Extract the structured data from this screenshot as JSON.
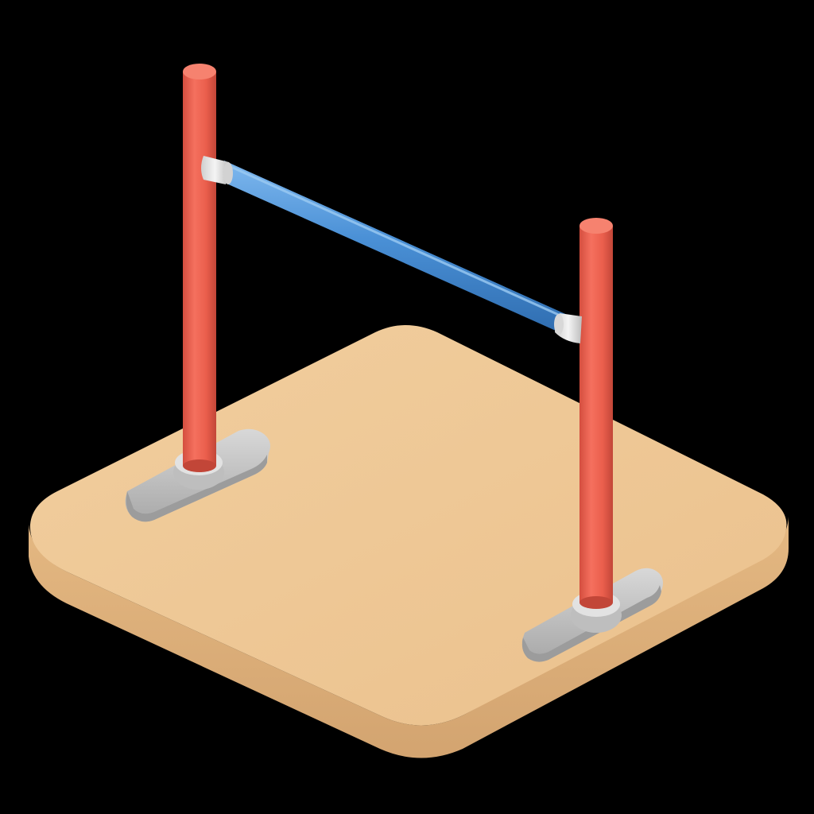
{
  "scene": {
    "subject": "high-jump-hurdle",
    "icon_name": "high-jump-bar-icon",
    "colors": {
      "background": "#000000",
      "mat_top": "#EEC795",
      "mat_side": "#DDB07A",
      "mat_edge_shadow": "#C99A66",
      "post": "#EE6352",
      "post_shade": "#C9483A",
      "post_highlight": "#F8897A",
      "crossbar": "#4A90D6",
      "crossbar_highlight": "#7FB8EE",
      "crossbar_shade": "#2F6DB0",
      "fitting": "#E6E6E6",
      "base_foot": "#C4C4C4",
      "base_foot_shade": "#9C9C9C"
    }
  }
}
